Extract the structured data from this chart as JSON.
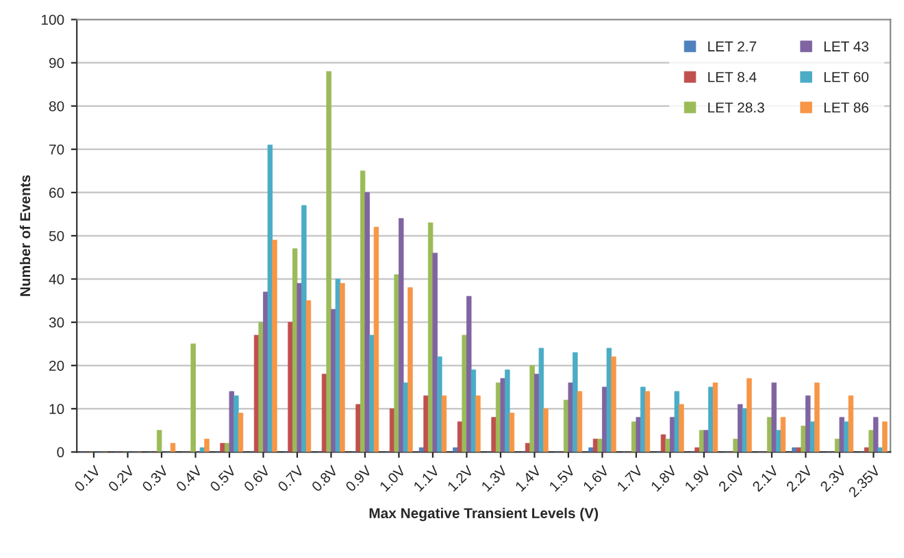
{
  "chart_data": {
    "type": "bar",
    "xlabel": "Max Negative Transient Levels (V)",
    "ylabel": "Number of Events",
    "categories": [
      "0.1V",
      "0.2V",
      "0.3V",
      "0.4V",
      "0.5V",
      "0.6V",
      "0.7V",
      "0.8V",
      "0.9V",
      "1.0V",
      "1.1V",
      "1.2V",
      "1.3V",
      "1.4V",
      "1.5V",
      "1.6V",
      "1.7V",
      "1.8V",
      "1.9V",
      "2.0V",
      "2.1V",
      "2.2V",
      "2.3V",
      "2.35V"
    ],
    "series": [
      {
        "name": "LET 2.7",
        "color": "#4f81bd",
        "values": [
          0,
          0,
          0,
          0,
          0,
          0,
          0,
          0,
          0,
          0,
          1,
          1,
          0,
          0,
          0,
          1,
          0,
          0,
          0,
          0,
          0,
          1,
          0,
          0
        ]
      },
      {
        "name": "LET 8.4",
        "color": "#c0504d",
        "values": [
          0,
          0,
          0,
          0,
          2,
          27,
          30,
          18,
          11,
          10,
          13,
          7,
          8,
          2,
          0,
          3,
          0,
          4,
          1,
          0,
          0,
          1,
          0,
          1
        ]
      },
      {
        "name": "LET 28.3",
        "color": "#9bbb59",
        "values": [
          0,
          0,
          5,
          25,
          2,
          30,
          47,
          88,
          65,
          41,
          53,
          27,
          16,
          20,
          12,
          3,
          7,
          3,
          5,
          3,
          8,
          6,
          3,
          5
        ]
      },
      {
        "name": "LET 43",
        "color": "#8064a2",
        "values": [
          0,
          0,
          0,
          0,
          14,
          37,
          39,
          33,
          60,
          54,
          46,
          36,
          17,
          18,
          16,
          15,
          8,
          8,
          5,
          11,
          16,
          13,
          8,
          8
        ]
      },
      {
        "name": "LET 60",
        "color": "#4bacc6",
        "values": [
          0,
          0,
          0,
          1,
          13,
          71,
          57,
          40,
          27,
          16,
          22,
          19,
          19,
          24,
          23,
          24,
          15,
          14,
          15,
          10,
          5,
          7,
          7,
          1
        ]
      },
      {
        "name": "LET 86",
        "color": "#f79646",
        "values": [
          0,
          0,
          2,
          3,
          9,
          49,
          35,
          39,
          52,
          38,
          13,
          13,
          9,
          10,
          14,
          22,
          14,
          11,
          16,
          17,
          8,
          16,
          13,
          7
        ]
      }
    ],
    "ylim": [
      0,
      100
    ],
    "yticks": [
      0,
      10,
      20,
      30,
      40,
      50,
      60,
      70,
      80,
      90,
      100
    ],
    "grid": "y",
    "legend": "top right"
  }
}
